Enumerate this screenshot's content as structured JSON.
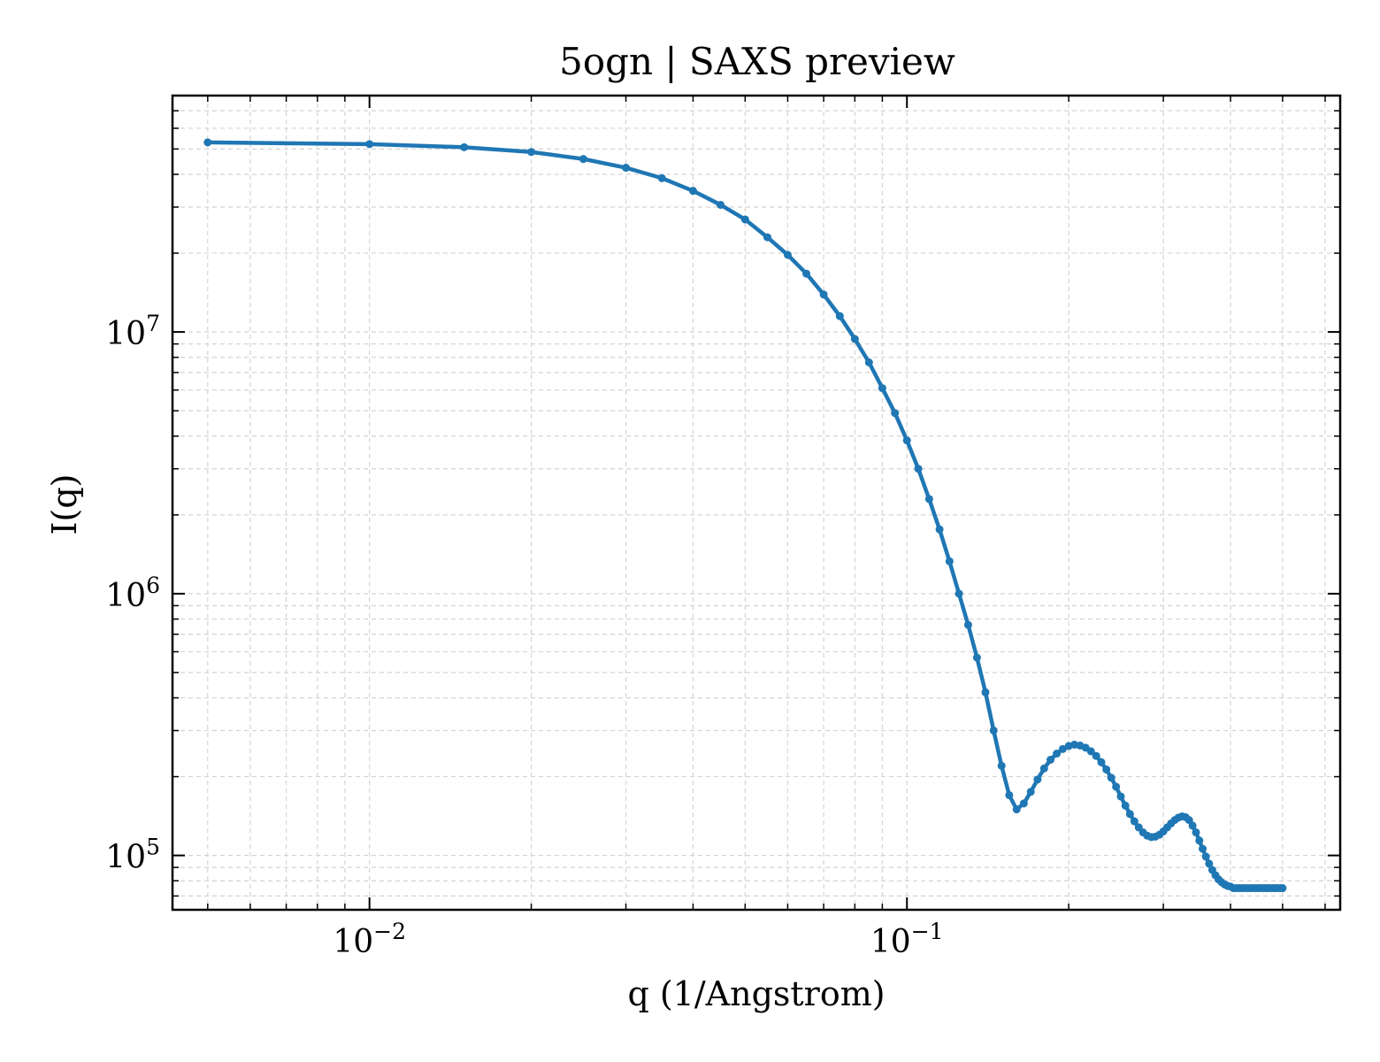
{
  "chart_data": {
    "type": "line",
    "title": "5ogn | SAXS preview",
    "xlabel": "q (1/Angstrom)",
    "ylabel": "I(q)",
    "xscale": "log",
    "yscale": "log",
    "xlim": [
      0.0043,
      0.64
    ],
    "ylim": [
      62000,
      80000000
    ],
    "grid": true,
    "legend": "none",
    "x_tick_labels": [
      {
        "base": "10",
        "exp": "−2",
        "value": 0.01
      },
      {
        "base": "10",
        "exp": "−1",
        "value": 0.1
      }
    ],
    "y_tick_labels": [
      {
        "base": "10",
        "exp": "5",
        "value": 100000
      },
      {
        "base": "10",
        "exp": "6",
        "value": 1000000
      },
      {
        "base": "10",
        "exp": "7",
        "value": 10000000
      }
    ],
    "series": [
      {
        "color": "#1f77b4",
        "x": [
          0.005,
          0.01,
          0.015,
          0.02,
          0.025,
          0.03,
          0.035,
          0.04,
          0.045,
          0.05,
          0.055,
          0.06,
          0.065,
          0.07,
          0.075,
          0.08,
          0.085,
          0.09,
          0.095,
          0.1,
          0.105,
          0.11,
          0.115,
          0.12,
          0.125,
          0.13,
          0.135,
          0.14,
          0.145,
          0.15,
          0.155,
          0.16,
          0.165,
          0.17,
          0.175,
          0.18,
          0.185,
          0.19,
          0.195,
          0.2,
          0.205,
          0.21,
          0.215,
          0.22,
          0.225,
          0.23,
          0.235,
          0.24,
          0.245,
          0.25,
          0.255,
          0.26,
          0.265,
          0.27,
          0.275,
          0.28,
          0.285,
          0.29,
          0.295,
          0.3,
          0.305,
          0.31,
          0.315,
          0.32,
          0.325,
          0.33,
          0.335,
          0.34,
          0.345,
          0.35,
          0.355,
          0.36,
          0.365,
          0.37,
          0.375,
          0.38,
          0.385,
          0.39,
          0.395,
          0.4,
          0.405,
          0.41,
          0.415,
          0.42,
          0.425,
          0.43,
          0.435,
          0.44,
          0.445,
          0.45,
          0.455,
          0.46,
          0.465,
          0.47,
          0.475,
          0.48,
          0.485,
          0.49,
          0.495,
          0.5
        ],
        "y": [
          53000000,
          52200000,
          50800000,
          48700000,
          45800000,
          42400000,
          38700000,
          34600000,
          30600000,
          26900000,
          23000000,
          19700000,
          16700000,
          13900000,
          11500000,
          9400000,
          7650000,
          6100000,
          4900000,
          3850000,
          3000000,
          2300000,
          1760000,
          1330000,
          1000000,
          760000,
          570000,
          420000,
          300000,
          220000,
          170000,
          150000,
          158000,
          175000,
          195000,
          215000,
          232000,
          245000,
          255000,
          262000,
          265000,
          263000,
          258000,
          250000,
          240000,
          227000,
          213000,
          198000,
          183000,
          168000,
          155000,
          144000,
          135000,
          128000,
          122500,
          119000,
          117500,
          118000,
          120000,
          123500,
          128000,
          132500,
          136500,
          139500,
          141000,
          140000,
          136500,
          130000,
          122500,
          114000,
          106000,
          99000,
          93000,
          88000,
          84000,
          81000,
          79000,
          77500,
          76500,
          76000,
          75000,
          75000,
          75000,
          75000,
          75000,
          75000,
          75000,
          75000,
          75000,
          75000,
          75000,
          75000,
          75000,
          75000,
          75000,
          75000,
          75000,
          75000,
          75000,
          75000
        ]
      }
    ]
  }
}
